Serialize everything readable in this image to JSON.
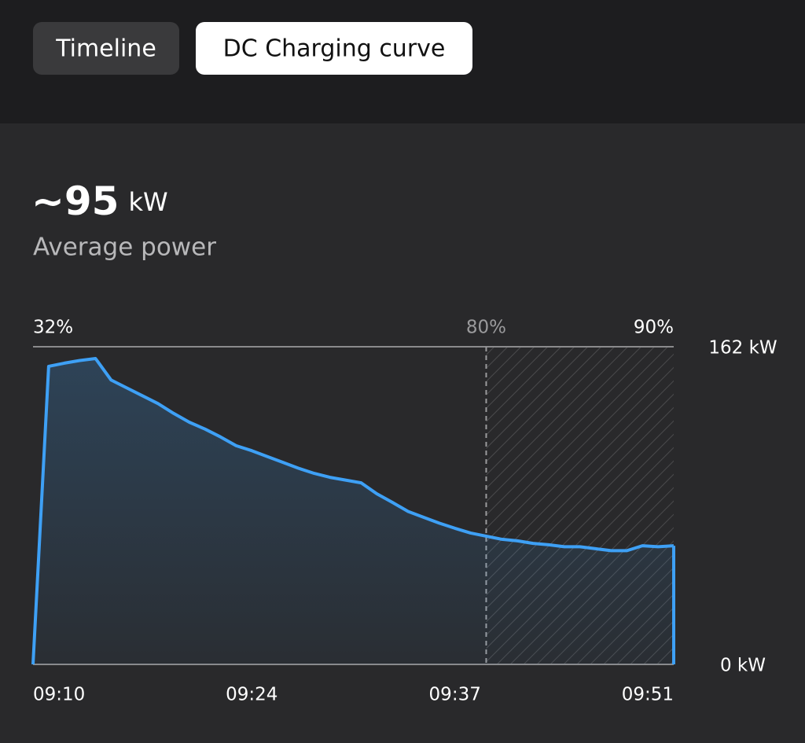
{
  "tabs": [
    {
      "label": "Timeline",
      "active": false
    },
    {
      "label": "DC Charging curve",
      "active": true
    }
  ],
  "summary": {
    "value": "~95",
    "unit": "kW",
    "label": "Average power"
  },
  "chart_data": {
    "type": "area-line",
    "x": [
      "09:10",
      "09:11",
      "09:12",
      "09:13",
      "09:14",
      "09:15",
      "09:16",
      "09:17",
      "09:18",
      "09:19",
      "09:20",
      "09:21",
      "09:22",
      "09:23",
      "09:24",
      "09:25",
      "09:26",
      "09:27",
      "09:28",
      "09:29",
      "09:30",
      "09:31",
      "09:32",
      "09:33",
      "09:34",
      "09:35",
      "09:36",
      "09:37",
      "09:38",
      "09:39",
      "09:40",
      "09:41",
      "09:42",
      "09:43",
      "09:44",
      "09:45",
      "09:46",
      "09:47",
      "09:48",
      "09:49",
      "09:50",
      "09:51"
    ],
    "values": [
      0,
      152,
      153.6,
      155,
      156,
      145,
      141,
      137,
      133,
      128,
      123.5,
      120,
      116,
      111.5,
      109,
      106,
      103,
      100,
      97.4,
      95.4,
      94,
      92.6,
      87,
      82.6,
      78,
      75,
      72,
      69.4,
      67,
      65.4,
      63.8,
      63,
      61.7,
      61,
      60,
      60,
      59,
      58,
      58,
      60.5,
      60,
      60.5
    ],
    "color": "#3ea0f5",
    "xlim": [
      "09:10",
      "09:51"
    ],
    "xticks": [
      "09:10",
      "09:24",
      "09:37",
      "09:51"
    ],
    "ylim": [
      0,
      162
    ],
    "yticks": [
      {
        "value": 0,
        "label": "0 kW"
      },
      {
        "value": 162,
        "label": "162 kW"
      }
    ],
    "grid": true,
    "soc_markers": [
      {
        "time": "09:10",
        "label": "32%"
      },
      {
        "time": "09:39",
        "label": "80%"
      },
      {
        "time": "09:51",
        "label": "90%"
      }
    ]
  }
}
